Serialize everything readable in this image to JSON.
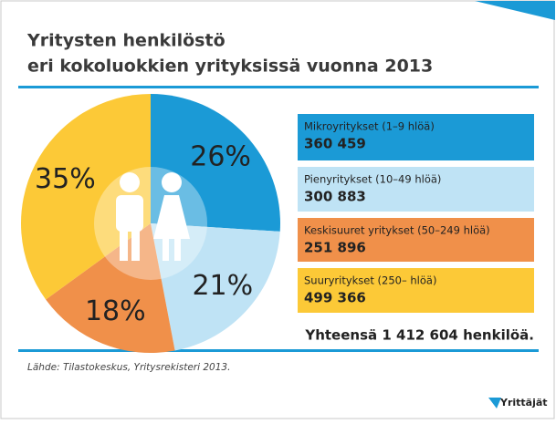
{
  "chart_data": {
    "type": "pie",
    "title": [
      "Yritysten henkilöstö",
      "eri kokoluokkien yrityksissä vuonna 2013"
    ],
    "categories": [
      "Mikroyritykset (1–9 hlöä)",
      "Pienyritykset (10–49 hlöä)",
      "Keskisuuret yritykset (50–249 hlöä)",
      "Suuryritykset  (250– hlöä)"
    ],
    "values": [
      26,
      21,
      18,
      35
    ],
    "value_labels": [
      "26%",
      "21%",
      "18%",
      "35%"
    ],
    "colors": [
      "#1b9ad6",
      "#bfe3f5",
      "#f0904a",
      "#fcc937"
    ],
    "counts": [
      360459,
      300883,
      251896,
      499366
    ],
    "count_labels": [
      "360 459",
      "300 883",
      "251 896",
      "499 366"
    ],
    "total": "Yhteensä 1 412 604 henkilöä.",
    "source": "Lähde: Tilastokeskus, Yritysrekisteri 2013.",
    "logo": "Yrittäjät"
  }
}
